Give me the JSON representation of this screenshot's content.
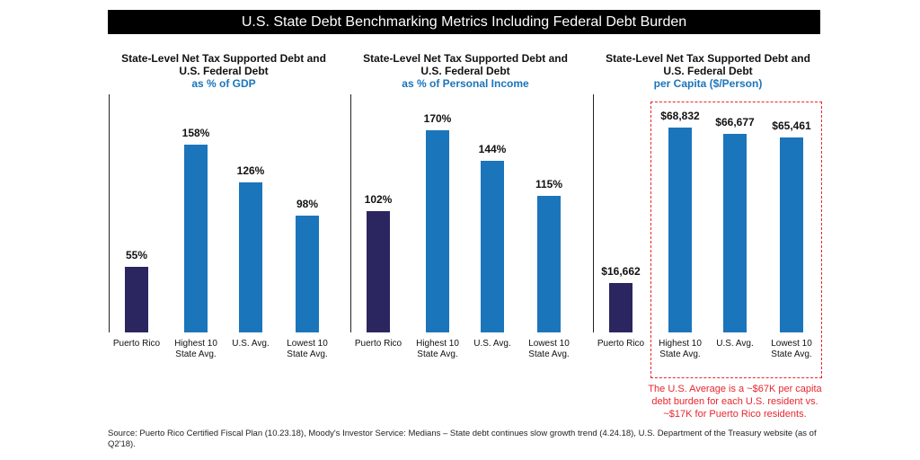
{
  "title": "U.S. State Debt Benchmarking Metrics Including Federal Debt Burden",
  "chart_data": [
    {
      "type": "bar",
      "title": "State-Level Net Tax Supported Debt and U.S. Federal Debt",
      "subtitle": "as % of GDP",
      "categories": [
        "Puerto Rico",
        "Highest 10 State Avg.",
        "U.S. Avg.",
        "Lowest 10 State Avg."
      ],
      "values": [
        55,
        158,
        126,
        98
      ],
      "value_labels": [
        "55%",
        "158%",
        "126%",
        "98%"
      ],
      "colors": [
        "#2b2660",
        "#1b75bb",
        "#1b75bb",
        "#1b75bb"
      ],
      "ylim": [
        0,
        200
      ]
    },
    {
      "type": "bar",
      "title": "State-Level Net Tax Supported Debt and U.S. Federal Debt",
      "subtitle": "as % of Personal Income",
      "categories": [
        "Puerto Rico",
        "Highest 10 State Avg.",
        "U.S. Avg.",
        "Lowest 10 State Avg."
      ],
      "values": [
        102,
        170,
        144,
        115
      ],
      "value_labels": [
        "102%",
        "170%",
        "144%",
        "115%"
      ],
      "colors": [
        "#2b2660",
        "#1b75bb",
        "#1b75bb",
        "#1b75bb"
      ],
      "ylim": [
        0,
        200
      ]
    },
    {
      "type": "bar",
      "title": "State-Level Net Tax Supported Debt and U.S. Federal Debt",
      "subtitle": "per Capita ($/Person)",
      "categories": [
        "Puerto Rico",
        "Highest 10 State Avg.",
        "U.S. Avg.",
        "Lowest 10 State Avg."
      ],
      "values": [
        16662,
        68832,
        66677,
        65461
      ],
      "value_labels": [
        "$16,662",
        "$68,832",
        "$66,677",
        "$65,461"
      ],
      "colors": [
        "#2b2660",
        "#1b75bb",
        "#1b75bb",
        "#1b75bb"
      ],
      "ylim": [
        0,
        80000
      ],
      "annotation": "The U.S. Average is a ~$67K per capita debt burden for each U.S. resident vs. ~$17K for Puerto Rico residents."
    }
  ],
  "source": "Source: Puerto Rico Certified Fiscal Plan (10.23.18), Moody's Investor Service: Medians – State debt continues slow growth trend (4.24.18), U.S. Department of the Treasury website (as of Q2'18)."
}
